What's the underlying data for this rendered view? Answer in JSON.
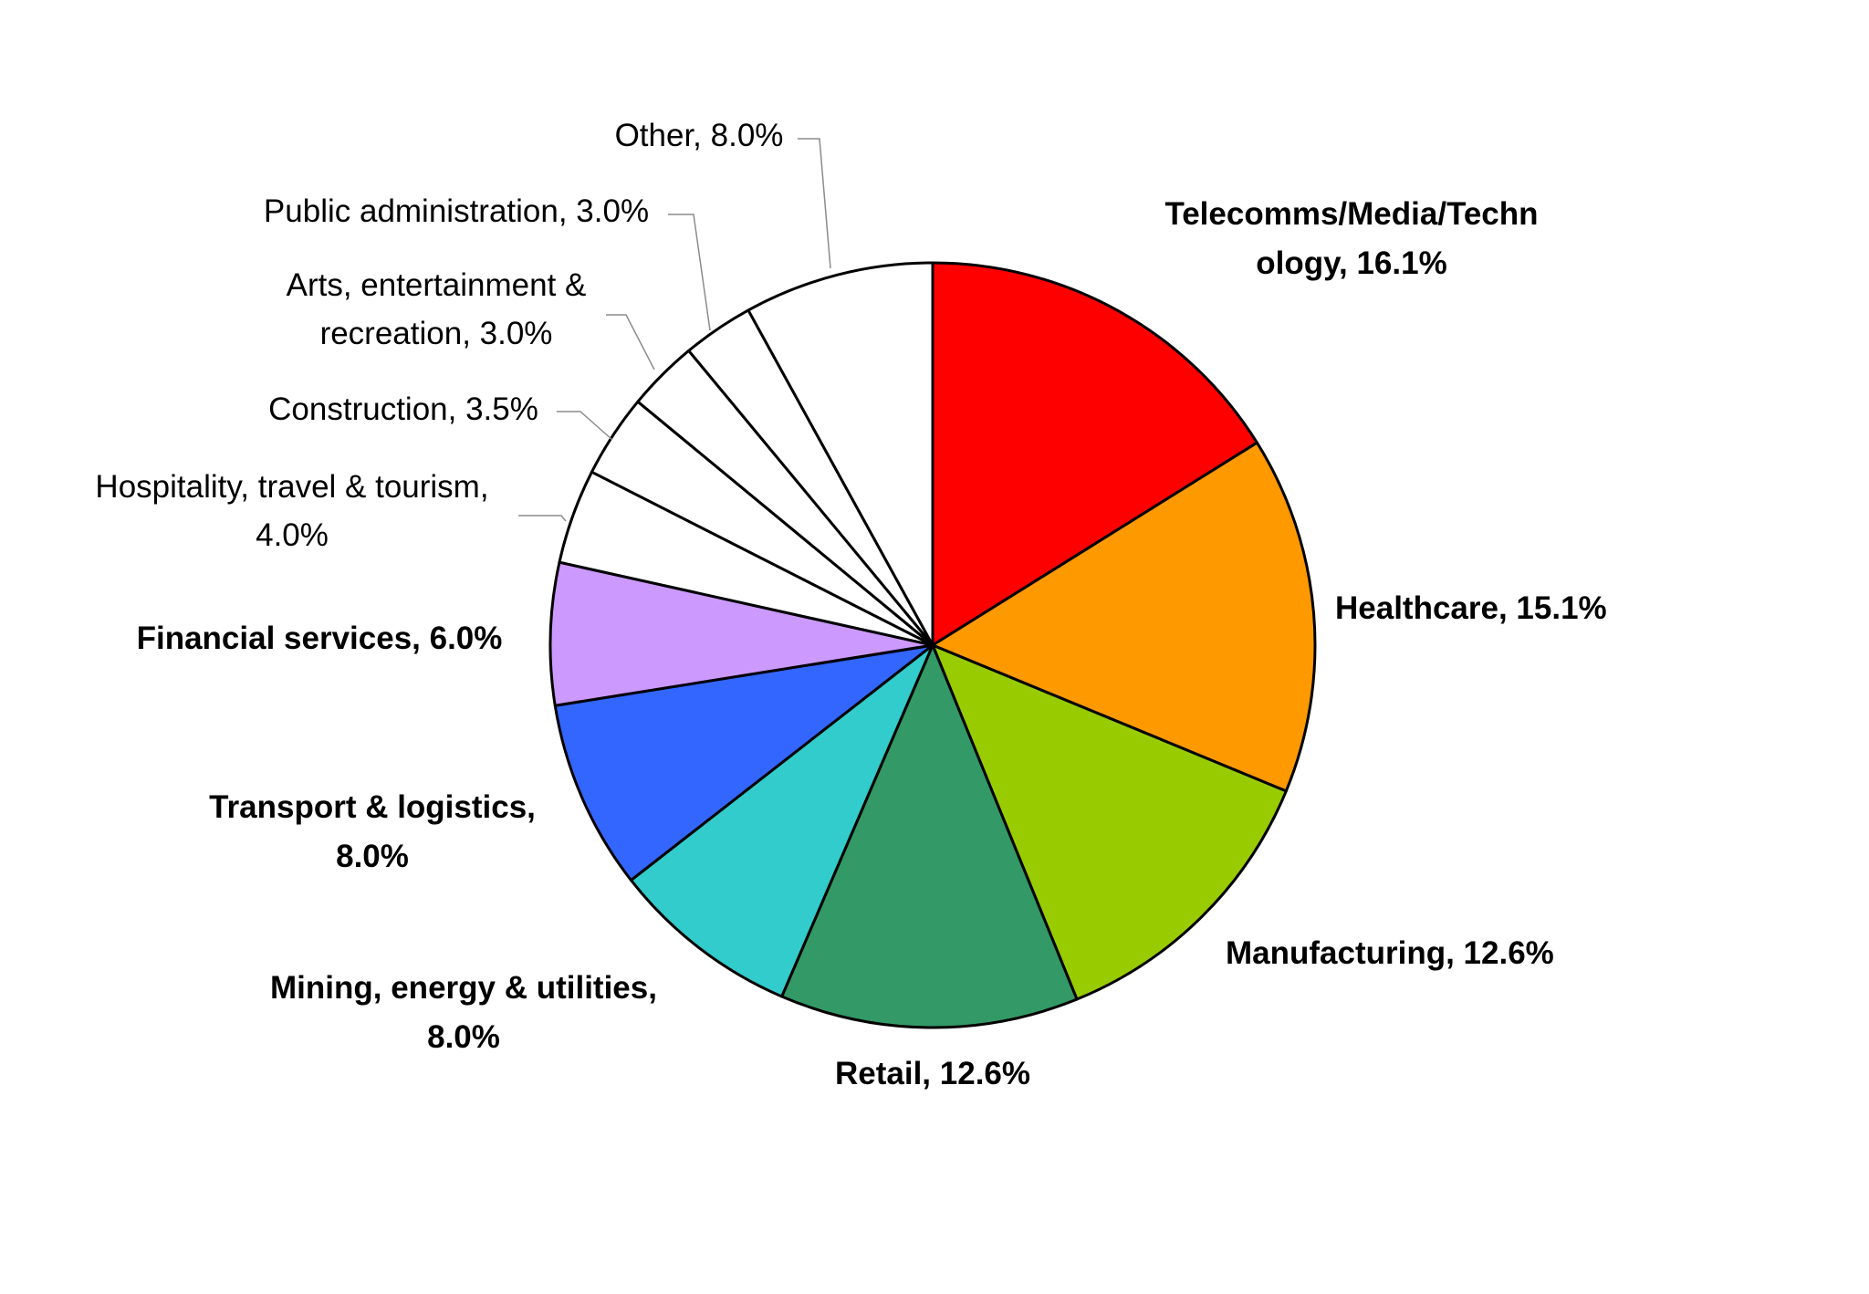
{
  "chart_data": {
    "type": "pie",
    "title": "",
    "colors": {
      "Telecomms/Media/Technology": "#ff0000",
      "Healthcare": "#ff9900",
      "Manufacturing": "#99cc00",
      "Retail": "#339966",
      "Mining, energy & utilities": "#33cccc",
      "Transport & logistics": "#3366ff",
      "Financial services": "#cc99ff",
      "Hospitality, travel & tourism": "#ffffff",
      "Construction": "#ffffff",
      "Arts, entertainment & recreation": "#ffffff",
      "Public administration": "#ffffff",
      "Other": "#ffffff"
    },
    "slices": [
      {
        "name": "Telecomms/Media/Technology",
        "value": 16.1,
        "label_lines": [
          "Telecomms/Media/Techn",
          "ology, 16.1%"
        ]
      },
      {
        "name": "Healthcare",
        "value": 15.1,
        "label_lines": [
          "Healthcare, 15.1%"
        ]
      },
      {
        "name": "Manufacturing",
        "value": 12.6,
        "label_lines": [
          "Manufacturing, 12.6%"
        ]
      },
      {
        "name": "Retail",
        "value": 12.6,
        "label_lines": [
          "Retail, 12.6%"
        ]
      },
      {
        "name": "Mining, energy & utilities",
        "value": 8.0,
        "label_lines": [
          "Mining, energy & utilities,",
          "8.0%"
        ]
      },
      {
        "name": "Transport & logistics",
        "value": 8.0,
        "label_lines": [
          "Transport & logistics,",
          "8.0%"
        ]
      },
      {
        "name": "Financial services",
        "value": 6.0,
        "label_lines": [
          "Financial services, 6.0%"
        ]
      },
      {
        "name": "Hospitality, travel & tourism",
        "value": 4.0,
        "label_lines": [
          "Hospitality, travel & tourism,",
          "4.0%"
        ]
      },
      {
        "name": "Construction",
        "value": 3.5,
        "label_lines": [
          "Construction, 3.5%"
        ]
      },
      {
        "name": "Arts, entertainment & recreation",
        "value": 3.0,
        "label_lines": [
          "Arts, entertainment &",
          "recreation, 3.0%"
        ]
      },
      {
        "name": "Public administration",
        "value": 3.0,
        "label_lines": [
          "Public administration, 3.0%"
        ]
      },
      {
        "name": "Other",
        "value": 8.0,
        "label_lines": [
          "Other, 8.0%"
        ]
      }
    ],
    "start": "12 o'clock",
    "direction": "clockwise",
    "legend": "none"
  }
}
